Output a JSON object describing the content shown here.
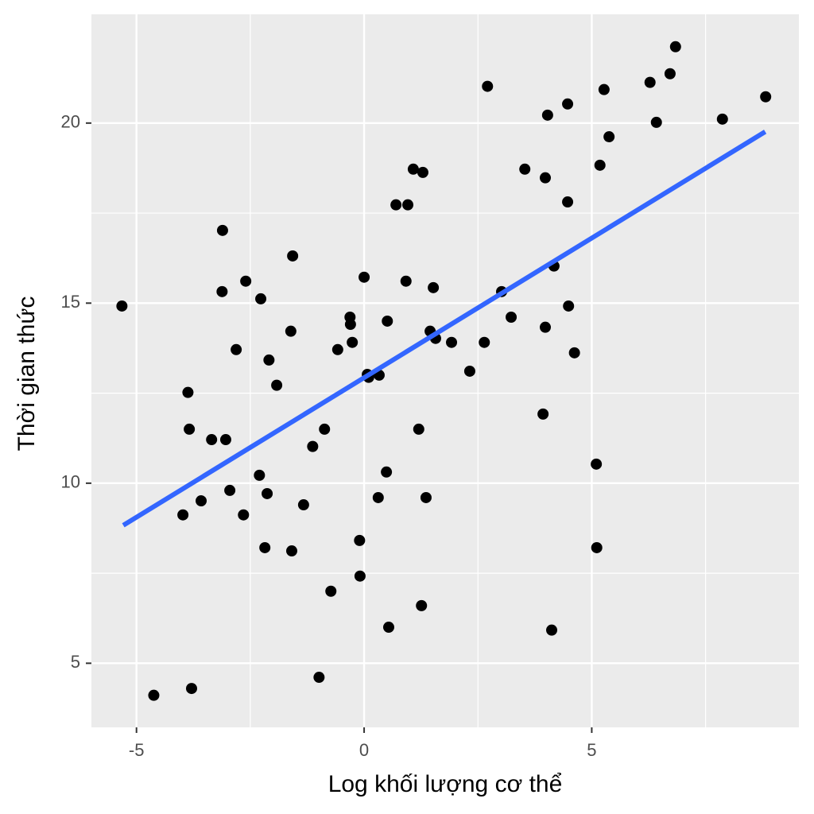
{
  "chart_data": {
    "type": "scatter",
    "x_label": "Log khối lượng cơ thể",
    "y_label": "Thời gian thức",
    "xlim": [
      -5.99,
      9.55
    ],
    "ylim": [
      3.22,
      23.02
    ],
    "xticks": [
      -5,
      0,
      5
    ],
    "yticks": [
      5,
      10,
      15,
      20
    ],
    "minor_xticks": [
      -2.5,
      2.5,
      7.5
    ],
    "minor_yticks": [
      7.5,
      12.5,
      17.5
    ],
    "grid": true,
    "color": "#000000",
    "x": [
      -5.32,
      -4.62,
      -3.79,
      -3.98,
      -3.87,
      -3.84,
      -3.58,
      -3.35,
      -3.04,
      -3.11,
      -3.12,
      -2.95,
      -2.81,
      -2.65,
      -2.6,
      -2.3,
      -2.27,
      -2.18,
      -2.13,
      -2.09,
      -1.92,
      -1.61,
      -1.57,
      -1.59,
      -1.33,
      -1.13,
      -0.99,
      -0.87,
      -0.73,
      -0.58,
      -0.31,
      -0.3,
      -0.26,
      -0.1,
      -0.09,
      0.0,
      0.07,
      0.1,
      0.33,
      0.31,
      0.51,
      0.49,
      0.54,
      0.7,
      0.96,
      0.92,
      1.08,
      1.29,
      1.2,
      1.26,
      1.36,
      1.45,
      1.52,
      1.57,
      1.92,
      2.32,
      2.64,
      2.71,
      3.02,
      3.23,
      3.53,
      3.93,
      3.98,
      3.98,
      4.03,
      4.12,
      4.17,
      4.47,
      4.47,
      4.49,
      4.62,
      5.1,
      5.11,
      5.18,
      5.27,
      5.38,
      6.28,
      6.42,
      6.72,
      6.84,
      7.87,
      8.82
    ],
    "values": [
      14.92,
      4.11,
      4.3,
      9.12,
      12.52,
      11.5,
      9.51,
      11.21,
      11.21,
      17.02,
      15.32,
      9.8,
      13.71,
      9.12,
      15.61,
      10.22,
      15.12,
      8.21,
      9.71,
      13.42,
      12.72,
      14.22,
      16.31,
      8.12,
      9.4,
      11.02,
      4.61,
      11.5,
      7.0,
      13.71,
      14.61,
      14.41,
      13.91,
      8.41,
      7.42,
      15.72,
      13.02,
      12.94,
      13.0,
      9.6,
      14.5,
      10.31,
      6.0,
      17.73,
      17.73,
      15.61,
      18.72,
      18.63,
      11.5,
      6.6,
      9.6,
      14.22,
      15.43,
      14.02,
      13.91,
      13.11,
      13.91,
      21.02,
      15.32,
      14.61,
      18.72,
      11.92,
      18.48,
      14.33,
      20.22,
      5.92,
      16.03,
      20.53,
      17.81,
      14.92,
      13.62,
      10.53,
      8.21,
      18.83,
      20.93,
      19.62,
      21.13,
      20.02,
      21.37,
      22.12,
      20.11,
      20.73
    ],
    "trend_line": {
      "x": [
        -5.29,
        8.81
      ],
      "y": [
        8.83,
        19.76
      ],
      "color": "#3366ff"
    }
  }
}
